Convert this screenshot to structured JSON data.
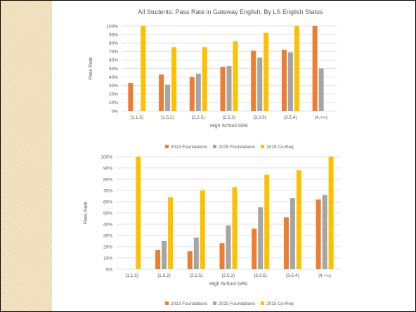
{
  "colors": {
    "foundations_2013": "#ED7D31",
    "foundations_2015": "#A5A5A5",
    "coreq_2015": "#FFC000",
    "gridline": "#D9D9D9",
    "axis_text": "#595959",
    "side_band": "#F4E6C6"
  },
  "chart_data": [
    {
      "type": "bar",
      "title": "All Students: Pass Rate in Gateway English, By LS English Status",
      "xlabel": "High School GPA",
      "ylabel": "Pass Rate",
      "ylim": [
        0,
        100
      ],
      "yticks": [
        "0%",
        "10%",
        "20%",
        "30%",
        "40%",
        "50%",
        "60%",
        "70%",
        "80%",
        "90%",
        "100%"
      ],
      "categories": [
        "[1,1.5)",
        "[1.5,2)",
        "[2,2.5)",
        "[2.5,3)",
        "[3,3.5)",
        "[3.5,4)",
        "[4,+∞)"
      ],
      "series": [
        {
          "name": "2013 Foundations",
          "values": [
            33,
            43,
            40,
            52,
            71,
            72,
            100
          ]
        },
        {
          "name": "2015 Foundations",
          "values": [
            null,
            31,
            44,
            53,
            63,
            69,
            50
          ]
        },
        {
          "name": "2015 Co-Req",
          "values": [
            100,
            75,
            75,
            82,
            92,
            100,
            null
          ]
        }
      ],
      "grid": true,
      "legend": "bottom"
    },
    {
      "type": "bar",
      "title": "",
      "xlabel": "High School GPA",
      "ylabel": "Pass Rate",
      "ylim": [
        0,
        100
      ],
      "yticks": [
        "0%",
        "10%",
        "20%",
        "30%",
        "40%",
        "50%",
        "60%",
        "70%",
        "80%",
        "90%",
        "100%"
      ],
      "categories": [
        "[1,1.5)",
        "[1.5,2)",
        "[2,2.5)",
        "[2.5,3)",
        "[3,3.5)",
        "[3.5,4)",
        "[4,+∞)"
      ],
      "series": [
        {
          "name": "2013 Foundations",
          "values": [
            null,
            17,
            16,
            23,
            36,
            46,
            62
          ]
        },
        {
          "name": "2015 Foundations",
          "values": [
            null,
            25,
            28,
            39,
            55,
            63,
            66
          ]
        },
        {
          "name": "2015 Co-Req",
          "values": [
            100,
            64,
            70,
            73,
            84,
            88,
            100
          ]
        }
      ],
      "grid": true,
      "legend": "bottom"
    }
  ]
}
